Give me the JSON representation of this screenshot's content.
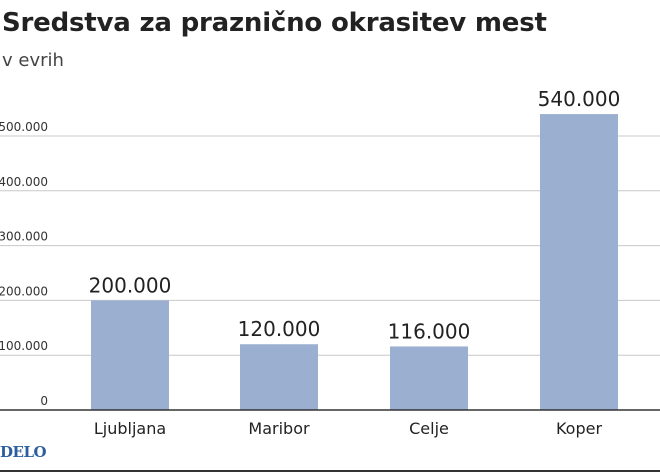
{
  "chart_data": {
    "type": "bar",
    "title": "Sredstva za praznično okrasitev mest",
    "subtitle": "v evrih",
    "categories": [
      "Ljubljana",
      "Maribor",
      "Celje",
      "Koper"
    ],
    "values": [
      200000,
      120000,
      116000,
      540000
    ],
    "value_labels": [
      "200.000",
      "120.000",
      "116.000",
      "540.000"
    ],
    "y_ticks": [
      0,
      100000,
      200000,
      300000,
      400000,
      500000
    ],
    "y_tick_labels": [
      "0",
      "100.000",
      "200.000",
      "300.000",
      "400.000",
      "500.000"
    ],
    "ylim": [
      0,
      540000
    ],
    "grid": true,
    "xlabel": "",
    "ylabel": "",
    "colors": {
      "bar": "#9bafd1",
      "grid": "#c8c8c8",
      "text": "#222222",
      "axis": "#333333"
    }
  },
  "source": "DELO"
}
